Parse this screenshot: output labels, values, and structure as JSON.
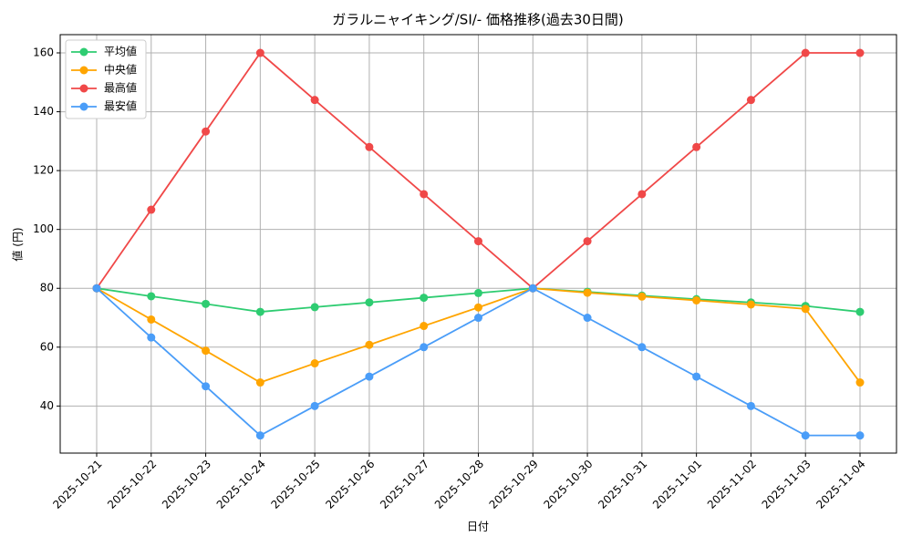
{
  "chart_data": {
    "type": "line",
    "title": "ガラルニャイキング/SI/- 価格推移(過去30日間)",
    "x_label": "日付",
    "y_label": "値 (円)",
    "categories": [
      "2025-10-21",
      "2025-10-22",
      "2025-10-23",
      "2025-10-24",
      "2025-10-25",
      "2025-10-26",
      "2025-10-27",
      "2025-10-28",
      "2025-10-29",
      "2025-10-30",
      "2025-10-31",
      "2025-11-01",
      "2025-11-02",
      "2025-11-03",
      "2025-11-04"
    ],
    "series": [
      {
        "name": "平均値",
        "color": "#2ecc71",
        "values": [
          80,
          77.3,
          74.7,
          72,
          73.6,
          75.2,
          76.8,
          78.4,
          80,
          78.8,
          77.5,
          76.3,
          75.2,
          74,
          72
        ]
      },
      {
        "name": "中央値",
        "color": "#ffa500",
        "values": [
          80,
          69.4,
          58.8,
          48,
          54.5,
          60.8,
          67.2,
          73.5,
          80,
          78.5,
          77.2,
          75.9,
          74.5,
          73,
          48
        ]
      },
      {
        "name": "最高値",
        "color": "#f04848",
        "values": [
          80,
          106.7,
          133.3,
          160,
          144,
          128,
          112,
          96,
          80,
          96,
          112,
          128,
          144,
          160,
          160
        ]
      },
      {
        "name": "最安値",
        "color": "#4a9df8",
        "values": [
          80,
          63.3,
          46.7,
          30,
          40,
          50,
          60,
          70,
          80,
          70,
          60,
          50,
          40,
          30,
          30
        ]
      }
    ],
    "ylim": [
      24,
      166.2
    ],
    "yticks": [
      40,
      60,
      80,
      100,
      120,
      140,
      160
    ],
    "grid": true,
    "legend": "upper-left"
  }
}
